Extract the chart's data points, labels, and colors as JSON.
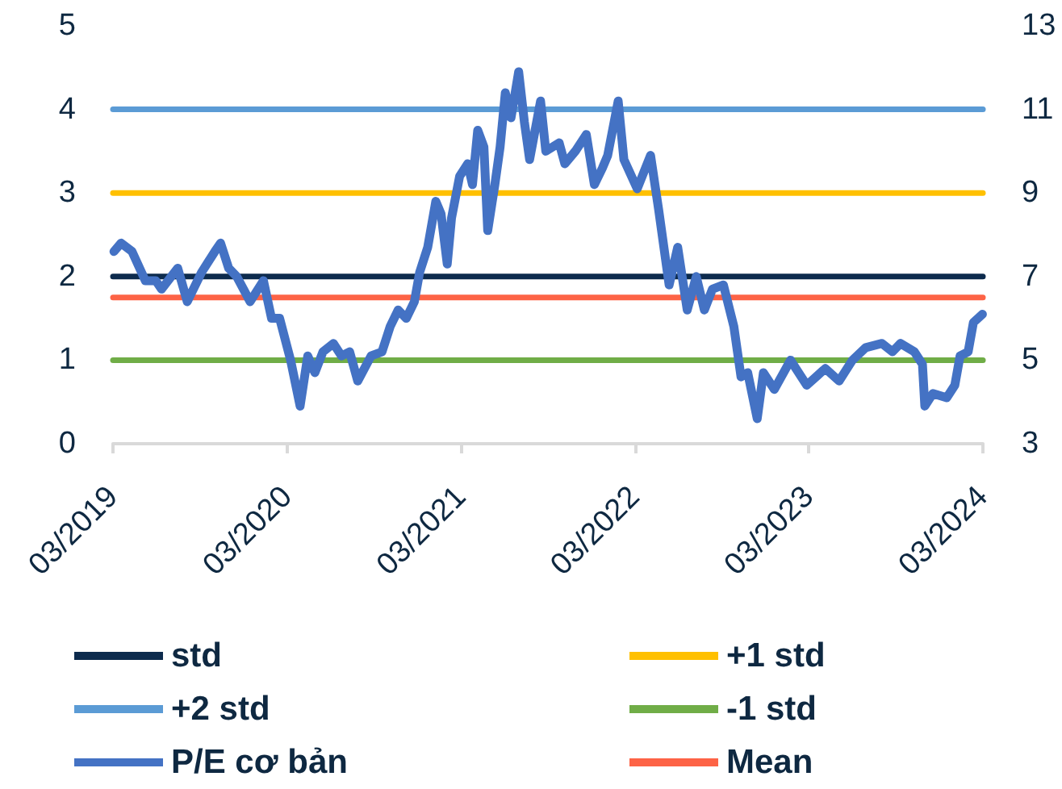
{
  "chart_data": {
    "type": "line",
    "x": [
      "2019-03-03",
      "2019-03-18",
      "2019-04-10",
      "2019-05-08",
      "2019-05-30",
      "2019-06-11",
      "2019-07-15",
      "2019-08-04",
      "2019-09-03",
      "2019-10-01",
      "2019-10-13",
      "2019-10-30",
      "2019-11-16",
      "2019-12-14",
      "2020-01-11",
      "2020-01-28",
      "2020-02-14",
      "2020-03-08",
      "2020-03-28",
      "2020-04-13",
      "2020-04-28",
      "2020-05-15",
      "2020-06-06",
      "2020-06-23",
      "2020-07-10",
      "2020-07-27",
      "2020-08-24",
      "2020-09-16",
      "2020-10-03",
      "2020-10-20",
      "2020-11-06",
      "2020-11-23",
      "2020-12-04",
      "2020-12-21",
      "2021-01-07",
      "2021-01-18",
      "2021-01-31",
      "2021-02-09",
      "2021-02-26",
      "2021-03-15",
      "2021-03-25",
      "2021-04-05",
      "2021-04-18",
      "2021-04-26",
      "2021-05-11",
      "2021-05-22",
      "2021-06-02",
      "2021-06-14",
      "2021-06-30",
      "2021-07-12",
      "2021-07-23",
      "2021-08-15",
      "2021-08-26",
      "2021-09-23",
      "2021-10-05",
      "2021-10-27",
      "2021-11-19",
      "2021-12-06",
      "2021-12-23",
      "2022-01-03",
      "2022-01-25",
      "2022-02-06",
      "2022-03-06",
      "2022-04-03",
      "2022-04-20",
      "2022-05-12",
      "2022-05-30",
      "2022-06-19",
      "2022-07-08",
      "2022-07-25",
      "2022-08-11",
      "2022-09-03",
      "2022-09-25",
      "2022-10-10",
      "2022-10-24",
      "2022-11-13",
      "2022-11-26",
      "2022-12-19",
      "2023-01-22",
      "2023-02-25",
      "2023-04-05",
      "2023-05-04",
      "2023-06-01",
      "2023-06-29",
      "2023-08-02",
      "2023-08-24",
      "2023-09-10",
      "2023-10-09",
      "2023-10-26",
      "2023-10-31",
      "2023-11-17",
      "2023-12-16",
      "2024-01-02",
      "2024-01-13",
      "2024-01-30",
      "2024-02-10",
      "2024-02-29"
    ],
    "series": [
      {
        "name": "std",
        "color": "#0d2b4d",
        "x": [
          "2019-03",
          "2024-03"
        ],
        "values": [
          2,
          2
        ]
      },
      {
        "name": "+1 std",
        "color": "#ffc000",
        "x": [
          "2019-03",
          "2024-03"
        ],
        "values": [
          9,
          9
        ],
        "axis": "y2"
      },
      {
        "name": "+2 std",
        "color": "#5b9bd5",
        "x": [
          "2019-03",
          "2024-03"
        ],
        "values": [
          11,
          11
        ],
        "axis": "y2"
      },
      {
        "name": "-1 std",
        "color": "#70ad47",
        "x": [
          "2019-03",
          "2024-03"
        ],
        "values": [
          5,
          5
        ],
        "axis": "y2"
      },
      {
        "name": "P/E cơ bản",
        "color": "#4472c4",
        "axis": "y2",
        "values": [
          7.6,
          7.8,
          7.6,
          6.9,
          6.9,
          6.7,
          7.2,
          6.4,
          7.1,
          7.6,
          7.8,
          7.2,
          7.0,
          6.4,
          6.9,
          6.0,
          6.0,
          5.0,
          3.9,
          5.1,
          4.7,
          5.2,
          5.4,
          5.1,
          5.2,
          4.5,
          5.1,
          5.2,
          5.8,
          6.2,
          6.0,
          6.4,
          7.1,
          7.7,
          8.8,
          8.5,
          7.3,
          8.4,
          9.4,
          9.7,
          9.2,
          10.5,
          10.1,
          8.1,
          9.2,
          10.1,
          11.4,
          10.8,
          11.9,
          10.7,
          9.8,
          11.2,
          10.0,
          10.2,
          9.7,
          10.0,
          10.4,
          9.2,
          9.6,
          9.9,
          11.2,
          9.8,
          9.1,
          9.9,
          8.6,
          6.8,
          7.7,
          6.2,
          7.0,
          6.2,
          6.7,
          6.8,
          5.8,
          4.6,
          4.7,
          3.6,
          4.7,
          4.3,
          5.0,
          4.4,
          4.8,
          4.5,
          5.0,
          5.3,
          5.4,
          5.2,
          5.4,
          5.2,
          4.9,
          3.9,
          4.2,
          4.1,
          4.4,
          5.1,
          5.2,
          5.9,
          6.1
        ]
      },
      {
        "name": "Mean",
        "color": "#fd6346",
        "x": [
          "2019-03",
          "2024-03"
        ],
        "values": [
          6.5,
          6.5
        ],
        "axis": "y2"
      }
    ],
    "xlim": [
      "2019-03",
      "2024-03"
    ],
    "xticks": [
      {
        "value": "2019-03",
        "label": "03/2019"
      },
      {
        "value": "2020-03",
        "label": "03/2020"
      },
      {
        "value": "2021-03",
        "label": "03/2021"
      },
      {
        "value": "2022-03",
        "label": "03/2022"
      },
      {
        "value": "2023-03",
        "label": "03/2023"
      },
      {
        "value": "2024-03",
        "label": "03/2024"
      }
    ],
    "ylim": [
      0,
      5
    ],
    "yticks": [
      0,
      1,
      2,
      3,
      4,
      5
    ],
    "y2lim": [
      3,
      13
    ],
    "y2ticks": [
      3,
      5,
      7,
      9,
      11,
      13
    ],
    "grid": false,
    "legend": "bottom",
    "marker": "none",
    "line_style": "solid"
  }
}
